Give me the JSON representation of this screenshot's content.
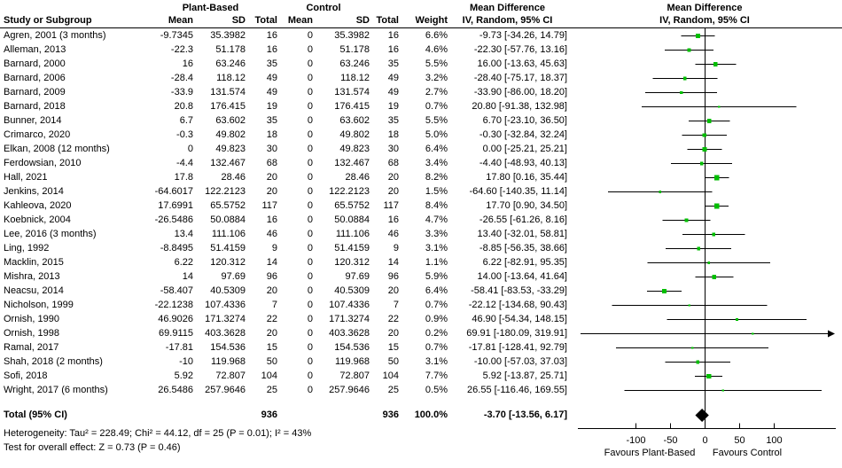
{
  "header": {
    "group_plant": "Plant-Based",
    "group_control": "Control",
    "md_text_col": "Mean Difference",
    "md_plot_col": "Mean Difference",
    "col_study": "Study or Subgroup",
    "col_mean": "Mean",
    "col_sd": "SD",
    "col_total": "Total",
    "col_mean2": "Mean",
    "col_sd2": "SD",
    "col_total2": "Total",
    "col_weight": "Weight",
    "col_ci": "IV, Random, 95% CI",
    "col_ci_plot": "IV, Random, 95% CI"
  },
  "chart_data": {
    "type": "scatter",
    "subtype": "forest_plot_meta_analysis",
    "effect_measure": "Mean Difference, IV, Random, 95% CI",
    "axis": {
      "ticks": [
        -100,
        -50,
        0,
        50,
        100
      ],
      "xmin": -183,
      "xmax": 189,
      "favours_left": "Favours Plant-Based",
      "favours_right": "Favours Control"
    },
    "colors": {
      "square": "#00be00",
      "diamond": "#000000",
      "line": "#000000"
    },
    "studies": [
      {
        "name": "Agren, 2001 (3 months)",
        "mean_pb": "-9.7345",
        "sd_pb": "35.3982",
        "n_pb": "16",
        "mean_c": "0",
        "sd_c": "35.3982",
        "n_c": "16",
        "weight": "6.6%",
        "w": 6.6,
        "md": "-9.73 [-34.26, 14.79]",
        "est": -9.73,
        "lo": -34.26,
        "hi": 14.79
      },
      {
        "name": "Alleman, 2013",
        "mean_pb": "-22.3",
        "sd_pb": "51.178",
        "n_pb": "16",
        "mean_c": "0",
        "sd_c": "51.178",
        "n_c": "16",
        "weight": "4.6%",
        "w": 4.6,
        "md": "-22.30 [-57.76, 13.16]",
        "est": -22.3,
        "lo": -57.76,
        "hi": 13.16
      },
      {
        "name": "Barnard, 2000",
        "mean_pb": "16",
        "sd_pb": "63.246",
        "n_pb": "35",
        "mean_c": "0",
        "sd_c": "63.246",
        "n_c": "35",
        "weight": "5.5%",
        "w": 5.5,
        "md": "16.00 [-13.63, 45.63]",
        "est": 16.0,
        "lo": -13.63,
        "hi": 45.63
      },
      {
        "name": "Barnard, 2006",
        "mean_pb": "-28.4",
        "sd_pb": "118.12",
        "n_pb": "49",
        "mean_c": "0",
        "sd_c": "118.12",
        "n_c": "49",
        "weight": "3.2%",
        "w": 3.2,
        "md": "-28.40 [-75.17, 18.37]",
        "est": -28.4,
        "lo": -75.17,
        "hi": 18.37
      },
      {
        "name": "Barnard, 2009",
        "mean_pb": "-33.9",
        "sd_pb": "131.574",
        "n_pb": "49",
        "mean_c": "0",
        "sd_c": "131.574",
        "n_c": "49",
        "weight": "2.7%",
        "w": 2.7,
        "md": "-33.90 [-86.00, 18.20]",
        "est": -33.9,
        "lo": -86.0,
        "hi": 18.2
      },
      {
        "name": "Barnard, 2018",
        "mean_pb": "20.8",
        "sd_pb": "176.415",
        "n_pb": "19",
        "mean_c": "0",
        "sd_c": "176.415",
        "n_c": "19",
        "weight": "0.7%",
        "w": 0.7,
        "md": "20.80 [-91.38, 132.98]",
        "est": 20.8,
        "lo": -91.38,
        "hi": 132.98
      },
      {
        "name": "Bunner, 2014",
        "mean_pb": "6.7",
        "sd_pb": "63.602",
        "n_pb": "35",
        "mean_c": "0",
        "sd_c": "63.602",
        "n_c": "35",
        "weight": "5.5%",
        "w": 5.5,
        "md": "6.70 [-23.10, 36.50]",
        "est": 6.7,
        "lo": -23.1,
        "hi": 36.5
      },
      {
        "name": "Crimarco, 2020",
        "mean_pb": "-0.3",
        "sd_pb": "49.802",
        "n_pb": "18",
        "mean_c": "0",
        "sd_c": "49.802",
        "n_c": "18",
        "weight": "5.0%",
        "w": 5.0,
        "md": "-0.30 [-32.84, 32.24]",
        "est": -0.3,
        "lo": -32.84,
        "hi": 32.24
      },
      {
        "name": "Elkan, 2008 (12 months)",
        "mean_pb": "0",
        "sd_pb": "49.823",
        "n_pb": "30",
        "mean_c": "0",
        "sd_c": "49.823",
        "n_c": "30",
        "weight": "6.4%",
        "w": 6.4,
        "md": "0.00 [-25.21, 25.21]",
        "est": 0.0,
        "lo": -25.21,
        "hi": 25.21
      },
      {
        "name": "Ferdowsian, 2010",
        "mean_pb": "-4.4",
        "sd_pb": "132.467",
        "n_pb": "68",
        "mean_c": "0",
        "sd_c": "132.467",
        "n_c": "68",
        "weight": "3.4%",
        "w": 3.4,
        "md": "-4.40 [-48.93, 40.13]",
        "est": -4.4,
        "lo": -48.93,
        "hi": 40.13
      },
      {
        "name": "Hall, 2021",
        "mean_pb": "17.8",
        "sd_pb": "28.46",
        "n_pb": "20",
        "mean_c": "0",
        "sd_c": "28.46",
        "n_c": "20",
        "weight": "8.2%",
        "w": 8.2,
        "md": "17.80 [0.16, 35.44]",
        "est": 17.8,
        "lo": 0.16,
        "hi": 35.44
      },
      {
        "name": "Jenkins, 2014",
        "mean_pb": "-64.6017",
        "sd_pb": "122.2123",
        "n_pb": "20",
        "mean_c": "0",
        "sd_c": "122.2123",
        "n_c": "20",
        "weight": "1.5%",
        "w": 1.5,
        "md": "-64.60 [-140.35, 11.14]",
        "est": -64.6,
        "lo": -140.35,
        "hi": 11.14
      },
      {
        "name": "Kahleova, 2020",
        "mean_pb": "17.6991",
        "sd_pb": "65.5752",
        "n_pb": "117",
        "mean_c": "0",
        "sd_c": "65.5752",
        "n_c": "117",
        "weight": "8.4%",
        "w": 8.4,
        "md": "17.70 [0.90, 34.50]",
        "est": 17.7,
        "lo": 0.9,
        "hi": 34.5
      },
      {
        "name": "Koebnick, 2004",
        "mean_pb": "-26.5486",
        "sd_pb": "50.0884",
        "n_pb": "16",
        "mean_c": "0",
        "sd_c": "50.0884",
        "n_c": "16",
        "weight": "4.7%",
        "w": 4.7,
        "md": "-26.55 [-61.26, 8.16]",
        "est": -26.55,
        "lo": -61.26,
        "hi": 8.16
      },
      {
        "name": "Lee, 2016 (3 months)",
        "mean_pb": "13.4",
        "sd_pb": "111.106",
        "n_pb": "46",
        "mean_c": "0",
        "sd_c": "111.106",
        "n_c": "46",
        "weight": "3.3%",
        "w": 3.3,
        "md": "13.40 [-32.01, 58.81]",
        "est": 13.4,
        "lo": -32.01,
        "hi": 58.81
      },
      {
        "name": "Ling, 1992",
        "mean_pb": "-8.8495",
        "sd_pb": "51.4159",
        "n_pb": "9",
        "mean_c": "0",
        "sd_c": "51.4159",
        "n_c": "9",
        "weight": "3.1%",
        "w": 3.1,
        "md": "-8.85 [-56.35, 38.66]",
        "est": -8.85,
        "lo": -56.35,
        "hi": 38.66
      },
      {
        "name": "Macklin, 2015",
        "mean_pb": "6.22",
        "sd_pb": "120.312",
        "n_pb": "14",
        "mean_c": "0",
        "sd_c": "120.312",
        "n_c": "14",
        "weight": "1.1%",
        "w": 1.1,
        "md": "6.22 [-82.91, 95.35]",
        "est": 6.22,
        "lo": -82.91,
        "hi": 95.35
      },
      {
        "name": "Mishra, 2013",
        "mean_pb": "14",
        "sd_pb": "97.69",
        "n_pb": "96",
        "mean_c": "0",
        "sd_c": "97.69",
        "n_c": "96",
        "weight": "5.9%",
        "w": 5.9,
        "md": "14.00 [-13.64, 41.64]",
        "est": 14.0,
        "lo": -13.64,
        "hi": 41.64
      },
      {
        "name": "Neacsu, 2014",
        "mean_pb": "-58.407",
        "sd_pb": "40.5309",
        "n_pb": "20",
        "mean_c": "0",
        "sd_c": "40.5309",
        "n_c": "20",
        "weight": "6.4%",
        "w": 6.4,
        "md": "-58.41 [-83.53, -33.29]",
        "est": -58.41,
        "lo": -83.53,
        "hi": -33.29
      },
      {
        "name": "Nicholson, 1999",
        "mean_pb": "-22.1238",
        "sd_pb": "107.4336",
        "n_pb": "7",
        "mean_c": "0",
        "sd_c": "107.4336",
        "n_c": "7",
        "weight": "0.7%",
        "w": 0.7,
        "md": "-22.12 [-134.68, 90.43]",
        "est": -22.12,
        "lo": -134.68,
        "hi": 90.43
      },
      {
        "name": "Ornish, 1990",
        "mean_pb": "46.9026",
        "sd_pb": "171.3274",
        "n_pb": "22",
        "mean_c": "0",
        "sd_c": "171.3274",
        "n_c": "22",
        "weight": "0.9%",
        "w": 0.9,
        "md": "46.90 [-54.34, 148.15]",
        "est": 46.9,
        "lo": -54.34,
        "hi": 148.15
      },
      {
        "name": "Ornish, 1998",
        "mean_pb": "69.9115",
        "sd_pb": "403.3628",
        "n_pb": "20",
        "mean_c": "0",
        "sd_c": "403.3628",
        "n_c": "20",
        "weight": "0.2%",
        "w": 0.2,
        "md": "69.91 [-180.09, 319.91]",
        "est": 69.91,
        "lo": -180.09,
        "hi": 319.91
      },
      {
        "name": "Ramal, 2017",
        "mean_pb": "-17.81",
        "sd_pb": "154.536",
        "n_pb": "15",
        "mean_c": "0",
        "sd_c": "154.536",
        "n_c": "15",
        "weight": "0.7%",
        "w": 0.7,
        "md": "-17.81 [-128.41, 92.79]",
        "est": -17.81,
        "lo": -128.41,
        "hi": 92.79
      },
      {
        "name": "Shah, 2018 (2 months)",
        "mean_pb": "-10",
        "sd_pb": "119.968",
        "n_pb": "50",
        "mean_c": "0",
        "sd_c": "119.968",
        "n_c": "50",
        "weight": "3.1%",
        "w": 3.1,
        "md": "-10.00 [-57.03, 37.03]",
        "est": -10.0,
        "lo": -57.03,
        "hi": 37.03
      },
      {
        "name": "Sofi, 2018",
        "mean_pb": "5.92",
        "sd_pb": "72.807",
        "n_pb": "104",
        "mean_c": "0",
        "sd_c": "72.807",
        "n_c": "104",
        "weight": "7.7%",
        "w": 7.7,
        "md": "5.92 [-13.87, 25.71]",
        "est": 5.92,
        "lo": -13.87,
        "hi": 25.71
      },
      {
        "name": "Wright, 2017 (6 months)",
        "mean_pb": "26.5486",
        "sd_pb": "257.9646",
        "n_pb": "25",
        "mean_c": "0",
        "sd_c": "257.9646",
        "n_c": "25",
        "weight": "0.5%",
        "w": 0.5,
        "md": "26.55 [-116.46, 169.55]",
        "est": 26.55,
        "lo": -116.46,
        "hi": 169.55
      }
    ],
    "total": {
      "label": "Total (95% CI)",
      "n_pb": "936",
      "n_c": "936",
      "weight": "100.0%",
      "md": "-3.70 [-13.56, 6.17]",
      "est": -3.7,
      "lo": -13.56,
      "hi": 6.17
    },
    "heterogeneity": "Heterogeneity: Tau² = 228.49; Chi² = 44.12, df = 25 (P = 0.01); I² = 43%",
    "overall_effect": "Test for overall effect: Z = 0.73 (P = 0.46)"
  }
}
